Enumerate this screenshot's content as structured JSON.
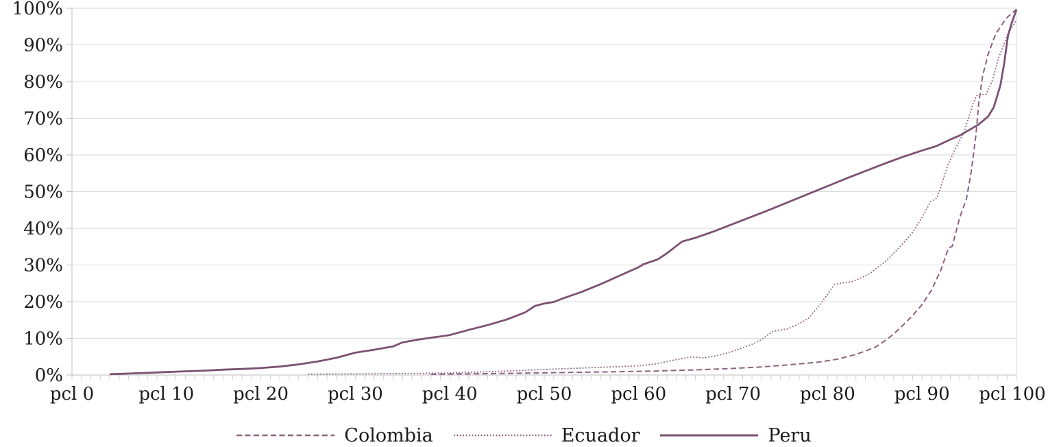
{
  "chart_data": {
    "type": "line",
    "title": "",
    "xlabel": "",
    "ylabel": "",
    "x_range": [
      0,
      100
    ],
    "y_range": [
      0,
      100
    ],
    "grid": "horizontal-only",
    "legend_position": "bottom-center",
    "x_tick_labels": [
      "pcl 0",
      "pcl 10",
      "pcl 20",
      "pcl 30",
      "pcl 40",
      "pcl 50",
      "pcl 60",
      "pcl 70",
      "pcl 80",
      "pcl 90",
      "pcl 100"
    ],
    "y_tick_labels": [
      "0%",
      "10%",
      "20%",
      "30%",
      "40%",
      "50%",
      "60%",
      "70%",
      "80%",
      "90%",
      "100%"
    ],
    "series": [
      {
        "name": "Colombia",
        "style": "dashed",
        "color": "#8C6080",
        "points": [
          [
            38,
            0.2
          ],
          [
            42,
            0.3
          ],
          [
            46,
            0.45
          ],
          [
            50,
            0.6
          ],
          [
            54,
            0.75
          ],
          [
            58,
            0.9
          ],
          [
            62,
            1.1
          ],
          [
            66,
            1.4
          ],
          [
            70,
            1.8
          ],
          [
            73,
            2.2
          ],
          [
            76,
            2.8
          ],
          [
            79,
            3.5
          ],
          [
            81,
            4.3
          ],
          [
            83,
            5.6
          ],
          [
            85,
            7.5
          ],
          [
            86,
            9.2
          ],
          [
            87,
            11.2
          ],
          [
            88,
            13.6
          ],
          [
            89,
            16.2
          ],
          [
            90,
            19.2
          ],
          [
            91,
            23.1
          ],
          [
            92,
            28.7
          ],
          [
            92.8,
            34.6
          ],
          [
            93.2,
            35.1
          ],
          [
            94,
            43
          ],
          [
            94.7,
            48
          ],
          [
            95.2,
            55.3
          ],
          [
            95.7,
            65.2
          ],
          [
            96,
            74
          ],
          [
            96.4,
            81.4
          ],
          [
            97,
            87.5
          ],
          [
            97.8,
            93
          ],
          [
            98.9,
            97.2
          ],
          [
            99.5,
            98.6
          ],
          [
            100,
            99.7
          ]
        ]
      },
      {
        "name": "Ecuador",
        "style": "dotted",
        "color": "#8C6080",
        "points": [
          [
            25,
            0.25
          ],
          [
            30,
            0.3
          ],
          [
            35,
            0.4
          ],
          [
            40,
            0.55
          ],
          [
            44,
            0.9
          ],
          [
            48,
            1.3
          ],
          [
            52,
            1.7
          ],
          [
            56,
            2.1
          ],
          [
            60,
            2.5
          ],
          [
            62,
            3.1
          ],
          [
            64,
            4.2
          ],
          [
            65.5,
            4.9
          ],
          [
            67,
            4.7
          ],
          [
            68.5,
            5.4
          ],
          [
            70,
            6.5
          ],
          [
            72,
            8.4
          ],
          [
            73,
            9.6
          ],
          [
            74.2,
            11.9
          ],
          [
            75.8,
            12.6
          ],
          [
            77,
            14
          ],
          [
            78,
            15.5
          ],
          [
            79,
            18.6
          ],
          [
            80,
            22
          ],
          [
            80.7,
            24.6
          ],
          [
            81.5,
            25.1
          ],
          [
            82.5,
            25.4
          ],
          [
            83.2,
            26.1
          ],
          [
            84.5,
            27.7
          ],
          [
            85.3,
            29.3
          ],
          [
            86.2,
            31.1
          ],
          [
            87.5,
            34.5
          ],
          [
            88.9,
            38.5
          ],
          [
            90,
            43
          ],
          [
            90.9,
            47.2
          ],
          [
            91.6,
            48.3
          ],
          [
            92.7,
            57
          ],
          [
            93.5,
            61.5
          ],
          [
            94.5,
            66.5
          ],
          [
            95.4,
            74
          ],
          [
            95.8,
            76.2
          ],
          [
            96.8,
            76.6
          ],
          [
            97.4,
            80
          ],
          [
            98.1,
            86.4
          ],
          [
            99.1,
            93
          ],
          [
            99.9,
            96.4
          ]
        ]
      },
      {
        "name": "Peru",
        "style": "solid",
        "color": "#7B5172",
        "points": [
          [
            4,
            0.2
          ],
          [
            6,
            0.4
          ],
          [
            8,
            0.6
          ],
          [
            10,
            0.8
          ],
          [
            12,
            1.0
          ],
          [
            14,
            1.2
          ],
          [
            16,
            1.45
          ],
          [
            18,
            1.65
          ],
          [
            20,
            1.9
          ],
          [
            22,
            2.3
          ],
          [
            24,
            2.9
          ],
          [
            26,
            3.7
          ],
          [
            28,
            4.7
          ],
          [
            30,
            6.1
          ],
          [
            32,
            6.9
          ],
          [
            34,
            7.8
          ],
          [
            35,
            8.9
          ],
          [
            37,
            9.8
          ],
          [
            40,
            10.9
          ],
          [
            42,
            12.3
          ],
          [
            44,
            13.6
          ],
          [
            46,
            15.1
          ],
          [
            48,
            17.1
          ],
          [
            49,
            18.8
          ],
          [
            50,
            19.5
          ],
          [
            51,
            19.9
          ],
          [
            52,
            20.9
          ],
          [
            54,
            22.7
          ],
          [
            56,
            24.8
          ],
          [
            58,
            27.1
          ],
          [
            60,
            29.4
          ],
          [
            60.5,
            30.2
          ],
          [
            62,
            31.5
          ],
          [
            63,
            33.2
          ],
          [
            64,
            35.2
          ],
          [
            64.6,
            36.4
          ],
          [
            66,
            37.4
          ],
          [
            68,
            39.2
          ],
          [
            70,
            41.2
          ],
          [
            72,
            43.2
          ],
          [
            74,
            45.2
          ],
          [
            76,
            47.3
          ],
          [
            78,
            49.4
          ],
          [
            80,
            51.5
          ],
          [
            82,
            53.6
          ],
          [
            84,
            55.6
          ],
          [
            86,
            57.6
          ],
          [
            88,
            59.5
          ],
          [
            90,
            61.2
          ],
          [
            91.5,
            62.4
          ],
          [
            93,
            64.2
          ],
          [
            94,
            65.3
          ],
          [
            95,
            66.8
          ],
          [
            96,
            68.3
          ],
          [
            97,
            70.5
          ],
          [
            97.6,
            73
          ],
          [
            98.3,
            79
          ],
          [
            98.7,
            85
          ],
          [
            99.1,
            92.5
          ],
          [
            99.5,
            96
          ],
          [
            100,
            99.6
          ]
        ]
      }
    ]
  },
  "colors": {
    "gridline": "#D9D9D9",
    "axis_line": "#BFBFBF",
    "tick_mark": "#CFCFCF",
    "label_text": "#1A1A1A",
    "background": "#FFFFFF"
  },
  "legend": {
    "items": [
      {
        "label": "Colombia"
      },
      {
        "label": "Ecuador"
      },
      {
        "label": "Peru"
      }
    ]
  }
}
